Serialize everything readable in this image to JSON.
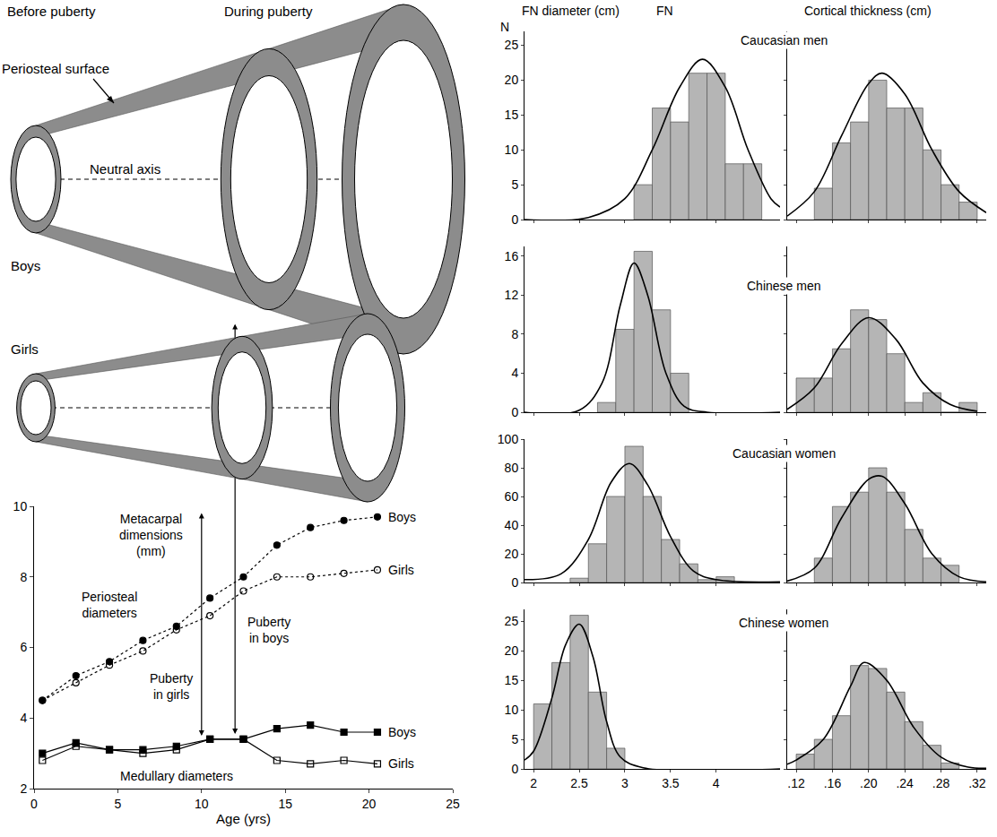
{
  "diagram": {
    "columns": [
      "Before puberty",
      "During puberty"
    ],
    "rows": [
      "Boys",
      "Girls"
    ],
    "periosteal_label": "Periosteal surface",
    "axis_label": "Neutral axis"
  },
  "chart_data": [
    {
      "type": "line",
      "xlabel": "Age (yrs)",
      "ylabel": "Metacarpal dimensions (mm)",
      "x": [
        0.5,
        2.5,
        4.5,
        6.5,
        8.5,
        10.5,
        12.5,
        14.5,
        16.5,
        18.5,
        20.5
      ],
      "series": [
        {
          "name": "Boys",
          "color": "#000000",
          "marker": "circle",
          "line_style": "dotted",
          "values": [
            4.5,
            5.2,
            5.6,
            6.2,
            6.6,
            7.4,
            8.0,
            8.9,
            9.4,
            9.6,
            9.7
          ]
        },
        {
          "name": "Girls",
          "color": "#000000",
          "marker": "circle-open",
          "line_style": "dotted",
          "values": [
            4.5,
            5.0,
            5.5,
            5.9,
            6.5,
            6.9,
            7.6,
            8.0,
            8.0,
            8.1,
            8.2
          ]
        },
        {
          "name": "Boys",
          "color": "#000000",
          "marker": "square",
          "line_style": "solid",
          "values": [
            3.0,
            3.3,
            3.1,
            3.1,
            3.2,
            3.4,
            3.4,
            3.7,
            3.8,
            3.6,
            3.6
          ]
        },
        {
          "name": "Girls",
          "color": "#000000",
          "marker": "square-open",
          "line_style": "solid",
          "values": [
            2.8,
            3.2,
            3.1,
            3.0,
            3.1,
            3.4,
            3.4,
            2.8,
            2.7,
            2.8,
            2.7
          ]
        }
      ],
      "annotations": [
        {
          "text": "Periosteal diameters"
        },
        {
          "text": "Medullary diameters"
        },
        {
          "text": "Puberty in girls",
          "x": 10
        },
        {
          "text": "Puberty in boys",
          "x": 12
        }
      ],
      "xlim": [
        0,
        25
      ],
      "xticks": [
        0,
        5,
        10,
        15,
        20,
        25
      ],
      "ylim": [
        2,
        10
      ],
      "yticks": [
        2,
        4,
        6,
        8,
        10
      ],
      "grid": false
    },
    {
      "type": "histogram",
      "title": "Caucasian men",
      "xlabel": "FN diameter (cm)",
      "ylabel": "N",
      "annotations": [
        {
          "text": "FN"
        }
      ],
      "bins": [
        3.1,
        3.3,
        3.5,
        3.7,
        3.9,
        4.1,
        4.3,
        4.5
      ],
      "values": [
        5,
        16,
        14,
        21,
        21,
        8,
        8
      ],
      "color": "#b5b5b5",
      "curve": {
        "type": "line",
        "color": "#000000",
        "x": [
          1.9,
          2.6,
          3.0,
          3.3,
          3.6,
          3.85,
          4.1,
          4.35,
          4.6,
          4.7
        ],
        "values": [
          0,
          0.3,
          3,
          10,
          19,
          23,
          19,
          10,
          3,
          1.8
        ]
      },
      "xlim": [
        1.9,
        4.7
      ],
      "xticks": [
        2,
        2.5,
        3,
        3.5,
        4
      ],
      "ylim": [
        0,
        27
      ],
      "yticks": [
        0,
        5,
        10,
        15,
        20,
        25
      ],
      "tick_labels": "y",
      "grid": false
    },
    {
      "type": "histogram",
      "xlabel": "Cortical thickness (cm)",
      "bins": [
        0.14,
        0.16,
        0.18,
        0.2,
        0.22,
        0.24,
        0.26,
        0.28,
        0.3,
        0.32
      ],
      "values": [
        4.5,
        11,
        14,
        20,
        16,
        16,
        10,
        5,
        2.5
      ],
      "color": "#b5b5b5",
      "curve": {
        "type": "line",
        "color": "#000000",
        "x": [
          0.11,
          0.14,
          0.17,
          0.2,
          0.215,
          0.24,
          0.27,
          0.3,
          0.33
        ],
        "values": [
          0.5,
          4,
          12,
          19.5,
          21,
          18,
          10,
          4,
          1
        ]
      },
      "xlim": [
        0.11,
        0.33
      ],
      "xticks": [
        {
          "value": 0.12,
          "label": ".12"
        },
        {
          "value": 0.16,
          "label": ".16"
        },
        {
          "value": 0.2,
          "label": ".20"
        },
        {
          "value": 0.24,
          "label": ".24"
        },
        {
          "value": 0.28,
          "label": ".28"
        },
        {
          "value": 0.32,
          "label": ".32"
        }
      ],
      "ylim": [
        0,
        27
      ],
      "yticks": [
        0,
        5,
        10,
        15,
        20,
        25
      ],
      "tick_labels": false,
      "grid": false
    },
    {
      "type": "histogram",
      "title": "Chinese men",
      "bins": [
        2.7,
        2.9,
        3.1,
        3.3,
        3.5,
        3.7
      ],
      "values": [
        1,
        8.5,
        16.5,
        10.5,
        4
      ],
      "color": "#b5b5b5",
      "curve": {
        "type": "line",
        "color": "#000000",
        "x": [
          1.9,
          2.5,
          2.75,
          2.95,
          3.1,
          3.25,
          3.45,
          3.65,
          3.9,
          4.7
        ],
        "values": [
          0,
          0.2,
          3,
          11,
          15.3,
          12,
          4,
          0.6,
          0,
          0
        ]
      },
      "xlim": [
        1.9,
        4.7
      ],
      "xticks": [
        2,
        2.5,
        3,
        3.5,
        4
      ],
      "ylim": [
        0,
        17
      ],
      "yticks": [
        0,
        4,
        8,
        12,
        16
      ],
      "tick_labels": "y",
      "grid": false
    },
    {
      "type": "histogram",
      "bins": [
        0.12,
        0.14,
        0.16,
        0.18,
        0.2,
        0.22,
        0.24,
        0.26,
        0.28,
        0.3,
        0.32
      ],
      "values": [
        3.5,
        3.5,
        6.5,
        10.5,
        9.5,
        6,
        1,
        2,
        0,
        1
      ],
      "color": "#b5b5b5",
      "curve": {
        "type": "line",
        "color": "#000000",
        "x": [
          0.11,
          0.14,
          0.17,
          0.2,
          0.23,
          0.26,
          0.29,
          0.32
        ],
        "values": [
          0.3,
          2.5,
          7,
          9.7,
          7.5,
          3,
          0.8,
          0.1
        ]
      },
      "xlim": [
        0.11,
        0.33
      ],
      "xticks": [
        {
          "value": 0.12,
          "label": ".12"
        },
        {
          "value": 0.16,
          "label": ".16"
        },
        {
          "value": 0.2,
          "label": ".20"
        },
        {
          "value": 0.24,
          "label": ".24"
        },
        {
          "value": 0.28,
          "label": ".28"
        },
        {
          "value": 0.32,
          "label": ".32"
        }
      ],
      "ylim": [
        0,
        17
      ],
      "yticks": [
        0,
        4,
        8,
        12,
        16
      ],
      "tick_labels": false,
      "grid": false
    },
    {
      "type": "histogram",
      "title": "Caucasian women",
      "bins": [
        2.4,
        2.6,
        2.8,
        3.0,
        3.2,
        3.4,
        3.6,
        3.8,
        4.0,
        4.2
      ],
      "values": [
        3,
        27,
        60,
        95,
        60,
        30,
        13,
        2,
        4
      ],
      "color": "#b5b5b5",
      "curve": {
        "type": "line",
        "color": "#000000",
        "x": [
          1.9,
          2.3,
          2.6,
          2.85,
          3.05,
          3.25,
          3.5,
          3.75,
          4.0,
          4.7
        ],
        "values": [
          2,
          6,
          30,
          70,
          83,
          68,
          32,
          8,
          2,
          0.5
        ]
      },
      "xlim": [
        1.9,
        4.7
      ],
      "xticks": [
        2,
        2.5,
        3,
        3.5,
        4
      ],
      "ylim": [
        0,
        100
      ],
      "yticks": [
        0,
        20,
        40,
        60,
        80,
        100
      ],
      "tick_labels": "y",
      "grid": false
    },
    {
      "type": "histogram",
      "bins": [
        0.14,
        0.16,
        0.18,
        0.2,
        0.22,
        0.24,
        0.26,
        0.28,
        0.3
      ],
      "values": [
        17,
        53,
        63,
        80,
        63,
        37,
        17,
        12
      ],
      "color": "#b5b5b5",
      "curve": {
        "type": "line",
        "color": "#000000",
        "x": [
          0.11,
          0.14,
          0.17,
          0.2,
          0.215,
          0.24,
          0.27,
          0.3,
          0.33
        ],
        "values": [
          1,
          10,
          45,
          72,
          74,
          55,
          20,
          4,
          0.5
        ]
      },
      "xlim": [
        0.11,
        0.33
      ],
      "xticks": [
        {
          "value": 0.12,
          "label": ".12"
        },
        {
          "value": 0.16,
          "label": ".16"
        },
        {
          "value": 0.2,
          "label": ".20"
        },
        {
          "value": 0.24,
          "label": ".24"
        },
        {
          "value": 0.28,
          "label": ".28"
        },
        {
          "value": 0.32,
          "label": ".32"
        }
      ],
      "ylim": [
        0,
        100
      ],
      "yticks": [
        0,
        20,
        40,
        60,
        80,
        100
      ],
      "tick_labels": false,
      "grid": false
    },
    {
      "type": "histogram",
      "title": "Chinese women",
      "bins": [
        2,
        2.2,
        2.4,
        2.6,
        2.8,
        3.0
      ],
      "values": [
        11,
        18,
        26,
        13,
        3.5
      ],
      "color": "#b5b5b5",
      "curve": {
        "type": "line",
        "color": "#000000",
        "x": [
          1.9,
          2.0,
          2.2,
          2.35,
          2.5,
          2.65,
          2.8,
          2.95,
          3.2,
          4.7
        ],
        "values": [
          1.5,
          3,
          12,
          21,
          24.5,
          19,
          8,
          2,
          0.2,
          0
        ]
      },
      "xlim": [
        1.9,
        4.7
      ],
      "xticks": [
        2,
        2.5,
        3,
        3.5,
        4
      ],
      "ylim": [
        0,
        27
      ],
      "yticks": [
        0,
        5,
        10,
        15,
        20,
        25
      ],
      "tick_labels": true,
      "grid": false
    },
    {
      "type": "histogram",
      "bins": [
        0.12,
        0.14,
        0.16,
        0.18,
        0.2,
        0.22,
        0.24,
        0.26,
        0.28,
        0.3
      ],
      "values": [
        2.5,
        5,
        9,
        17.5,
        17,
        13,
        8,
        4,
        1
      ],
      "color": "#b5b5b5",
      "curve": {
        "type": "line",
        "color": "#000000",
        "x": [
          0.11,
          0.12,
          0.15,
          0.18,
          0.195,
          0.22,
          0.25,
          0.28,
          0.31,
          0.33
        ],
        "values": [
          0.8,
          1.5,
          5,
          14,
          18,
          15,
          7,
          2,
          0.3,
          0.1
        ]
      },
      "xlim": [
        0.11,
        0.33
      ],
      "xticks": [
        {
          "value": 0.12,
          "label": ".12"
        },
        {
          "value": 0.16,
          "label": ".16"
        },
        {
          "value": 0.2,
          "label": ".20"
        },
        {
          "value": 0.24,
          "label": ".24"
        },
        {
          "value": 0.28,
          "label": ".28"
        },
        {
          "value": 0.32,
          "label": ".32"
        }
      ],
      "ylim": [
        0,
        27
      ],
      "yticks": [
        0,
        5,
        10,
        15,
        20,
        25
      ],
      "tick_labels": "x",
      "grid": false
    }
  ]
}
